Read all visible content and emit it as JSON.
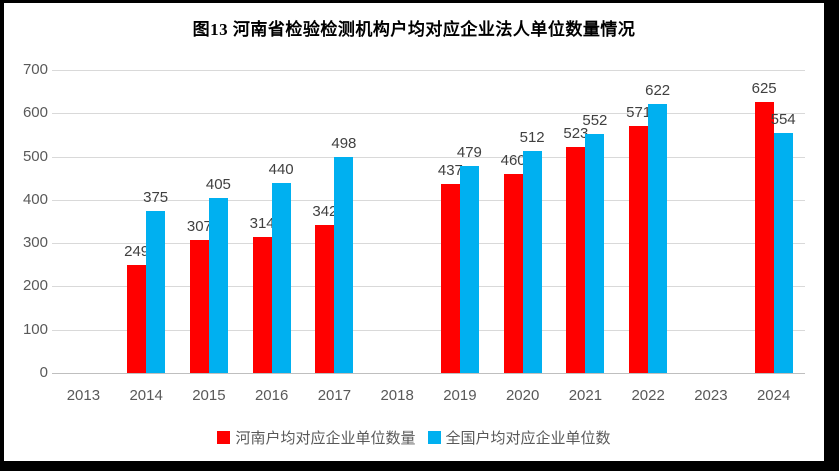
{
  "page": {
    "background": "#ffffff",
    "frame_color": "#000000"
  },
  "chart_data": {
    "type": "bar",
    "title": "图13  河南省检验检测机构户均对应企业法人单位数量情况",
    "categories": [
      "2013",
      "2014",
      "2015",
      "2016",
      "2017",
      "2018",
      "2019",
      "2020",
      "2021",
      "2022",
      "2023",
      "2024"
    ],
    "series": [
      {
        "name": "河南户均对应企业单位数量",
        "color": "#FF0000",
        "values": [
          null,
          249,
          307,
          314,
          342,
          null,
          437,
          460,
          523,
          571,
          null,
          625
        ]
      },
      {
        "name": "全国户均对应企业单位数",
        "color": "#00B0F0",
        "values": [
          null,
          375,
          405,
          440,
          498,
          null,
          479,
          512,
          552,
          622,
          null,
          554
        ]
      }
    ],
    "xlabel": "",
    "ylabel": "",
    "ylim": [
      0,
      700
    ],
    "ytick_step": 100,
    "yticks": [
      0,
      100,
      200,
      300,
      400,
      500,
      600,
      700
    ],
    "grid": true,
    "legend_position": "bottom",
    "data_labels": true,
    "colors": {
      "grid": "#D9D9D9",
      "axis_text": "#595959",
      "data_label_text": "#404040",
      "title_text": "#000000"
    }
  }
}
